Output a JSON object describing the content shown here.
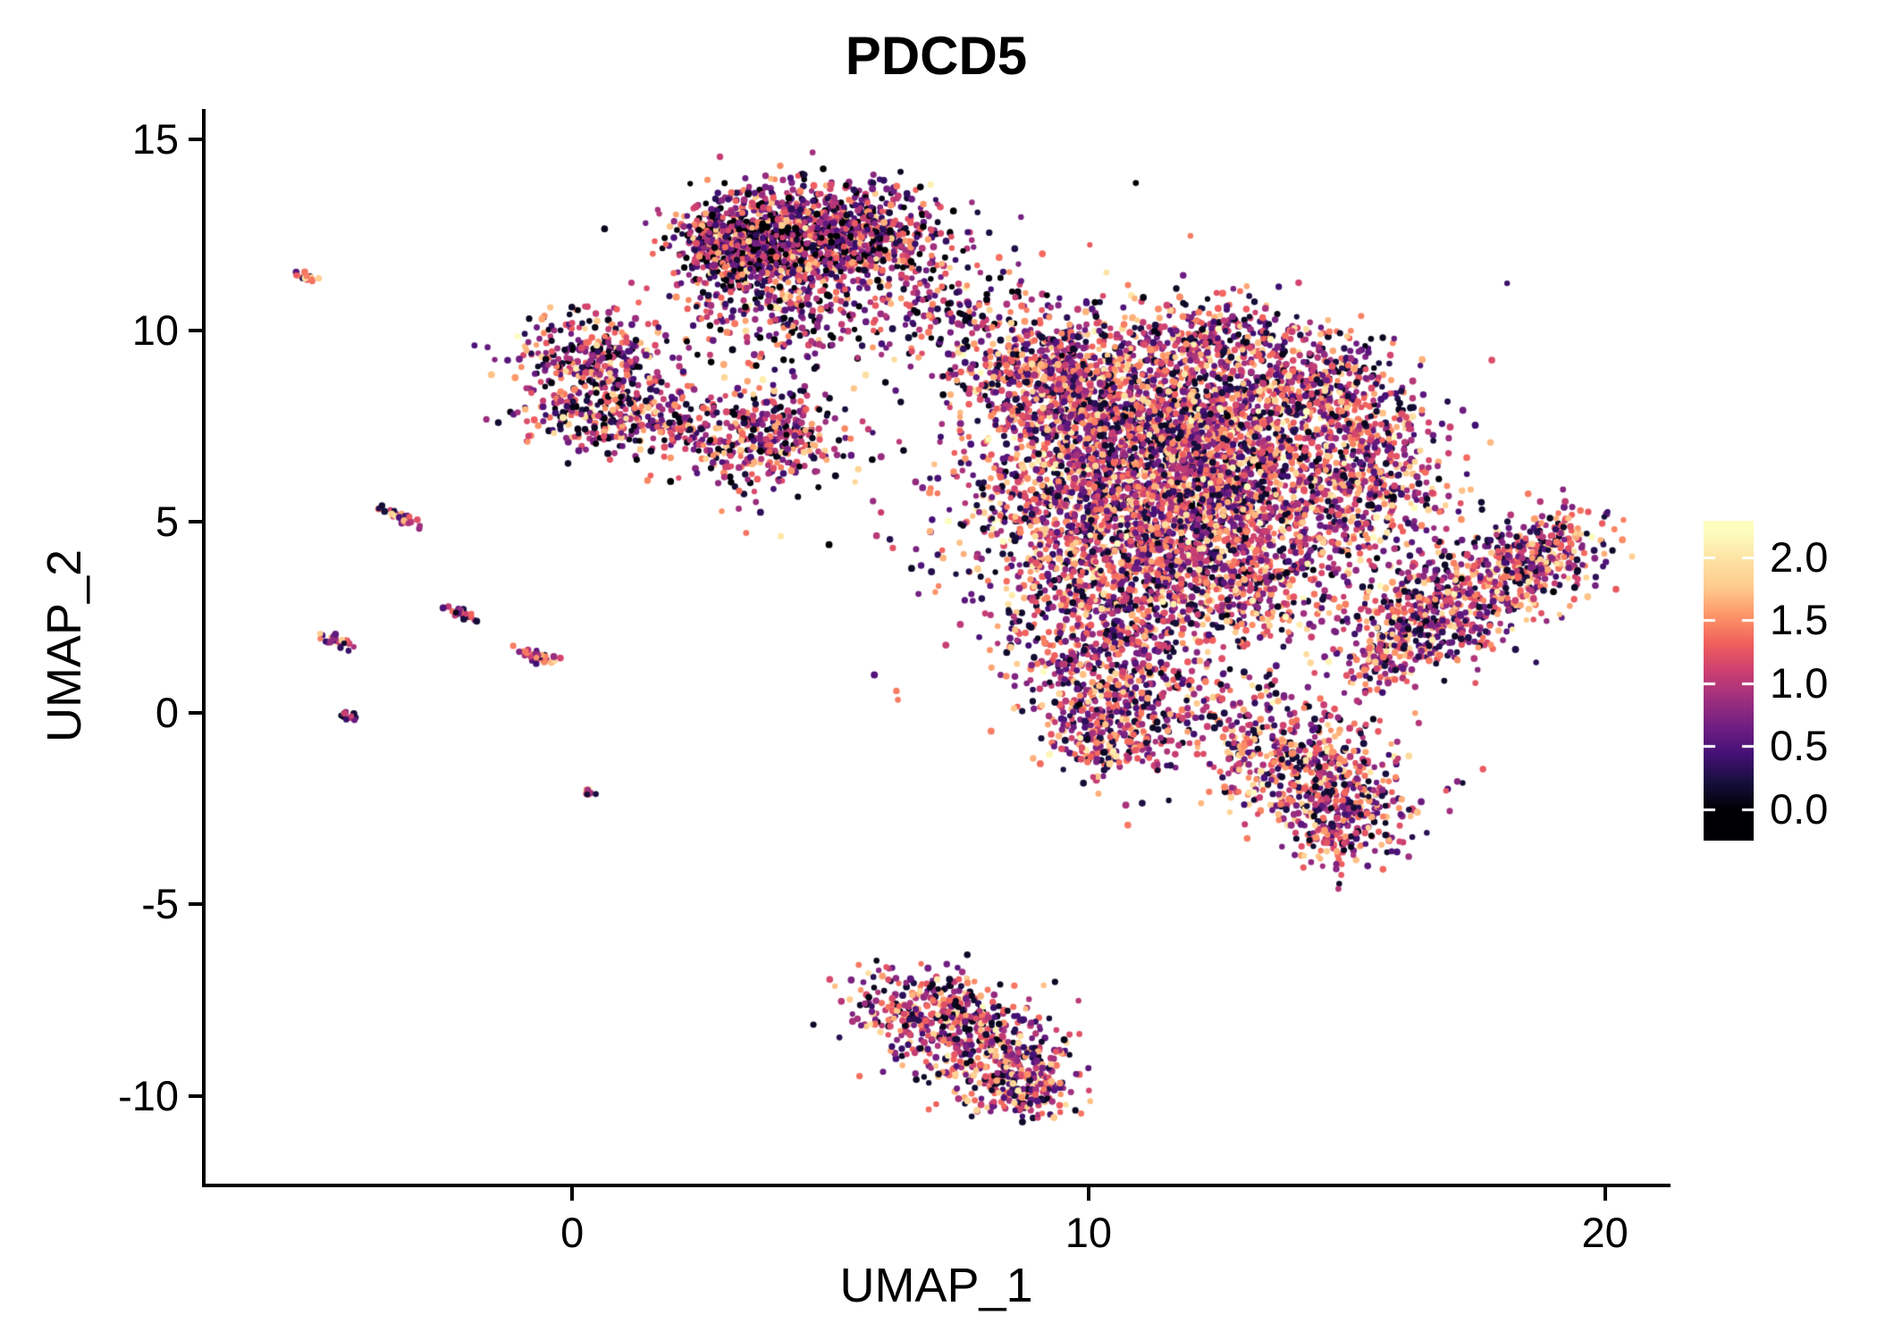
{
  "chart_data": {
    "type": "scatter",
    "title": "PDCD5",
    "xlabel": "UMAP_1",
    "ylabel": "UMAP_2",
    "xlim": [
      -7.1,
      21.2
    ],
    "ylim": [
      -12.3,
      15.8
    ],
    "grid": false,
    "x_ticks": {
      "values": [
        0,
        10,
        20
      ],
      "labels": [
        "0",
        "10",
        "20"
      ]
    },
    "y_ticks": {
      "values": [
        15,
        10,
        5,
        0,
        -5,
        -10
      ],
      "labels": [
        "15",
        "10",
        "5",
        "0",
        "-5",
        "-10"
      ]
    },
    "colorbar": {
      "tick_values": [
        2.0,
        1.5,
        1.0,
        0.5,
        0.0
      ],
      "tick_labels": [
        "2.0",
        "1.5",
        "1.0",
        "0.5",
        "0.0"
      ],
      "vmin": 0,
      "vmax": 2.2,
      "bar_top_value": 2.29,
      "bar_bottom_value": -0.25,
      "position": "right"
    },
    "color_scale": {
      "name": "magma",
      "stops": [
        {
          "t": 0.0,
          "color": "#000004"
        },
        {
          "t": 0.1,
          "color": "#180f3e"
        },
        {
          "t": 0.2,
          "color": "#451077"
        },
        {
          "t": 0.3,
          "color": "#721f81"
        },
        {
          "t": 0.4,
          "color": "#9f2f7f"
        },
        {
          "t": 0.5,
          "color": "#cd4071"
        },
        {
          "t": 0.6,
          "color": "#f1605d"
        },
        {
          "t": 0.7,
          "color": "#fd9567"
        },
        {
          "t": 0.8,
          "color": "#feca8d"
        },
        {
          "t": 0.9,
          "color": "#fde2a3"
        },
        {
          "t": 1.0,
          "color": "#fcfdbf"
        }
      ]
    },
    "expression_distribution": {
      "components": [
        {
          "weight": 0.16,
          "type": "half_normal",
          "mean": 0.0,
          "sd": 0.1
        },
        {
          "weight": 0.29,
          "type": "normal",
          "mean": 0.55,
          "sd": 0.25
        },
        {
          "weight": 0.35,
          "type": "normal",
          "mean": 1.1,
          "sd": 0.25
        },
        {
          "weight": 0.2,
          "type": "normal",
          "mean": 1.6,
          "sd": 0.25
        }
      ],
      "clamp": [
        0,
        2.2
      ]
    },
    "clusters_format": "[center_x, center_y, sd_x, sd_y, n_points, rotation_deg, expression_shift]",
    "clusters": [
      [
        4.4,
        12.5,
        1.05,
        0.65,
        800,
        0,
        -0.1
      ],
      [
        3.1,
        12.3,
        0.55,
        0.55,
        450,
        0,
        -0.15
      ],
      [
        4.1,
        10.6,
        1.0,
        0.8,
        300,
        0,
        -0.05
      ],
      [
        5.8,
        12.6,
        0.7,
        0.6,
        250,
        0,
        -0.1
      ],
      [
        6.8,
        11.2,
        0.8,
        0.9,
        120,
        0,
        -0.05
      ],
      [
        7.8,
        10.3,
        0.9,
        0.75,
        90,
        0,
        -0.05
      ],
      [
        0.4,
        9.4,
        0.75,
        0.55,
        260,
        0,
        0
      ],
      [
        0.6,
        7.9,
        0.85,
        0.6,
        280,
        0,
        0
      ],
      [
        2.0,
        7.6,
        0.7,
        0.5,
        80,
        0,
        0
      ],
      [
        3.7,
        7.2,
        0.85,
        0.65,
        380,
        0,
        0
      ],
      [
        9.3,
        8.8,
        1.0,
        0.85,
        650,
        0,
        0.1
      ],
      [
        11.6,
        7.6,
        1.6,
        1.15,
        1200,
        0,
        0.1
      ],
      [
        10.4,
        5.4,
        1.4,
        1.2,
        1000,
        0,
        0.12
      ],
      [
        13.0,
        5.7,
        1.5,
        1.25,
        1100,
        0,
        0.12
      ],
      [
        12.4,
        3.4,
        1.4,
        0.95,
        650,
        0,
        0.1
      ],
      [
        12.4,
        9.8,
        0.9,
        0.55,
        250,
        0,
        0.05
      ],
      [
        14.5,
        8.8,
        0.75,
        0.65,
        280,
        0,
        0.05
      ],
      [
        15.5,
        6.4,
        0.65,
        1.0,
        300,
        0,
        0.1
      ],
      [
        10.2,
        1.9,
        0.9,
        1.1,
        450,
        0,
        0.1
      ],
      [
        10.5,
        -0.3,
        0.65,
        0.75,
        320,
        0,
        0.15
      ],
      [
        11.5,
        5.5,
        2.6,
        2.3,
        550,
        0,
        0
      ],
      [
        12.4,
        0.4,
        1.3,
        0.5,
        150,
        -10,
        0.05
      ],
      [
        16.4,
        2.3,
        0.75,
        0.6,
        260,
        20,
        0.1
      ],
      [
        17.6,
        3.4,
        0.95,
        0.7,
        380,
        20,
        0.1
      ],
      [
        18.8,
        4.3,
        0.6,
        0.5,
        200,
        20,
        0.1
      ],
      [
        15.6,
        1.3,
        0.4,
        0.35,
        80,
        20,
        0.1
      ],
      [
        13.9,
        -1.2,
        0.85,
        0.6,
        300,
        0,
        0.1
      ],
      [
        14.9,
        -2.3,
        0.75,
        0.65,
        280,
        0,
        0.1
      ],
      [
        14.9,
        -3.3,
        0.45,
        0.45,
        100,
        0,
        0.05
      ],
      [
        7.0,
        -7.8,
        0.95,
        0.5,
        320,
        -10,
        0.05
      ],
      [
        8.0,
        -8.9,
        0.85,
        0.6,
        300,
        -15,
        0.05
      ],
      [
        8.7,
        -9.9,
        0.5,
        0.4,
        160,
        0,
        0.1
      ],
      [
        -5.1,
        11.4,
        0.1,
        0.05,
        15,
        -30,
        0.3
      ],
      [
        -3.35,
        5.15,
        0.2,
        0.06,
        35,
        -30,
        0.15
      ],
      [
        -4.55,
        1.9,
        0.18,
        0.06,
        30,
        -30,
        0.15
      ],
      [
        -2.15,
        2.6,
        0.16,
        0.06,
        28,
        -30,
        0.1
      ],
      [
        -0.65,
        1.5,
        0.22,
        0.07,
        40,
        -15,
        0.15
      ],
      [
        -4.35,
        -0.05,
        0.1,
        0.05,
        14,
        -30,
        0.1
      ],
      [
        0.3,
        -2.1,
        0.06,
        0.05,
        8,
        0,
        0.2
      ]
    ]
  }
}
